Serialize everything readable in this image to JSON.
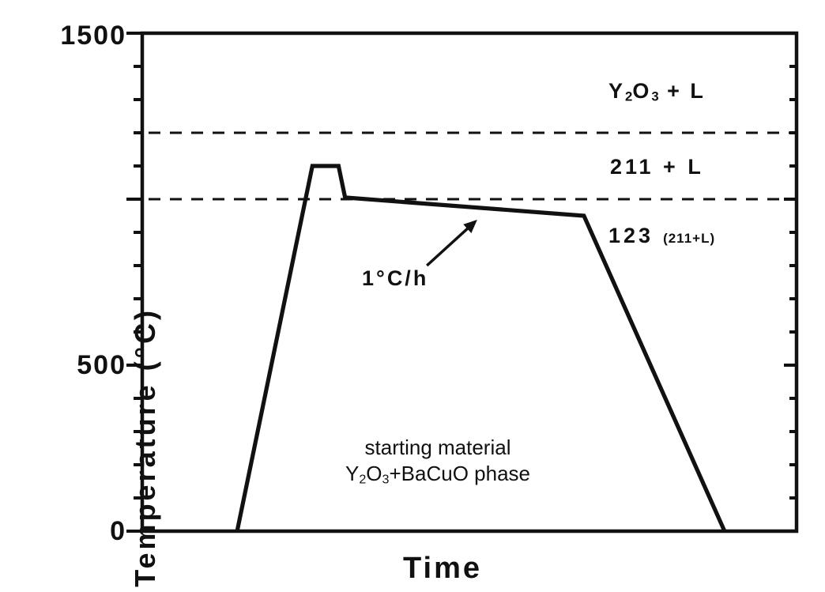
{
  "colors": {
    "ink": "#111111",
    "background": "#ffffff"
  },
  "chart_data": {
    "type": "line",
    "title": "",
    "xlabel": "Time",
    "ylabel": "Temperature (°C)",
    "xlim": [
      0,
      10
    ],
    "ylim": [
      0,
      1500
    ],
    "x_tick_labels": [],
    "y_ticks": [
      {
        "value": 1500,
        "label": "1500"
      },
      {
        "value": 1000,
        "label": ""
      },
      {
        "value": 500,
        "label": "500"
      },
      {
        "value": 0,
        "label": "0"
      }
    ],
    "y_minor_tick_step": 100,
    "grid": false,
    "legend": false,
    "series": [
      {
        "name": "temperature-schedule",
        "style": "solid",
        "points_time_temperature": [
          [
            1.45,
            0
          ],
          [
            2.6,
            1100
          ],
          [
            3.0,
            1100
          ],
          [
            3.1,
            1005
          ],
          [
            6.75,
            950
          ],
          [
            8.9,
            0
          ]
        ]
      }
    ],
    "reference_lines": [
      {
        "temperature": 1200,
        "style": "dashed"
      },
      {
        "temperature": 1000,
        "style": "dashed"
      }
    ],
    "phase_regions": [
      {
        "label": "Y2O3 + L",
        "position": "above 1200 dashed line"
      },
      {
        "label": "211 + L",
        "position": "between 1200 and 1000 dashed lines"
      },
      {
        "label": "123 (211+L)",
        "position": "below 1000 dashed line"
      }
    ],
    "annotations": [
      {
        "text": "1°C/h",
        "arrow_from_time_temperature": [
          4.35,
          800
        ],
        "arrow_to_time_temperature": [
          5.12,
          938
        ]
      },
      {
        "text": "starting material Y2O3+BaCuO phase"
      }
    ]
  },
  "labels": {
    "ylabel": "Temperature (°C)",
    "xlabel": "Time",
    "ytick_1500": "1500",
    "ytick_500": "500",
    "ytick_0": "0",
    "region_top": {
      "p0": "Y",
      "s0": "2",
      "p1": "O",
      "s1": "3",
      "p2": " + L"
    },
    "region_mid": "211 + L",
    "region_bottom_main": "123",
    "region_bottom_paren": "(211+L)",
    "cooling_rate": "1°C/h",
    "starting_line1": "starting material",
    "starting_line2": {
      "p0": "Y",
      "s0": "2",
      "p1": "O",
      "s1": "3",
      "p2": "+BaCuO phase"
    }
  }
}
